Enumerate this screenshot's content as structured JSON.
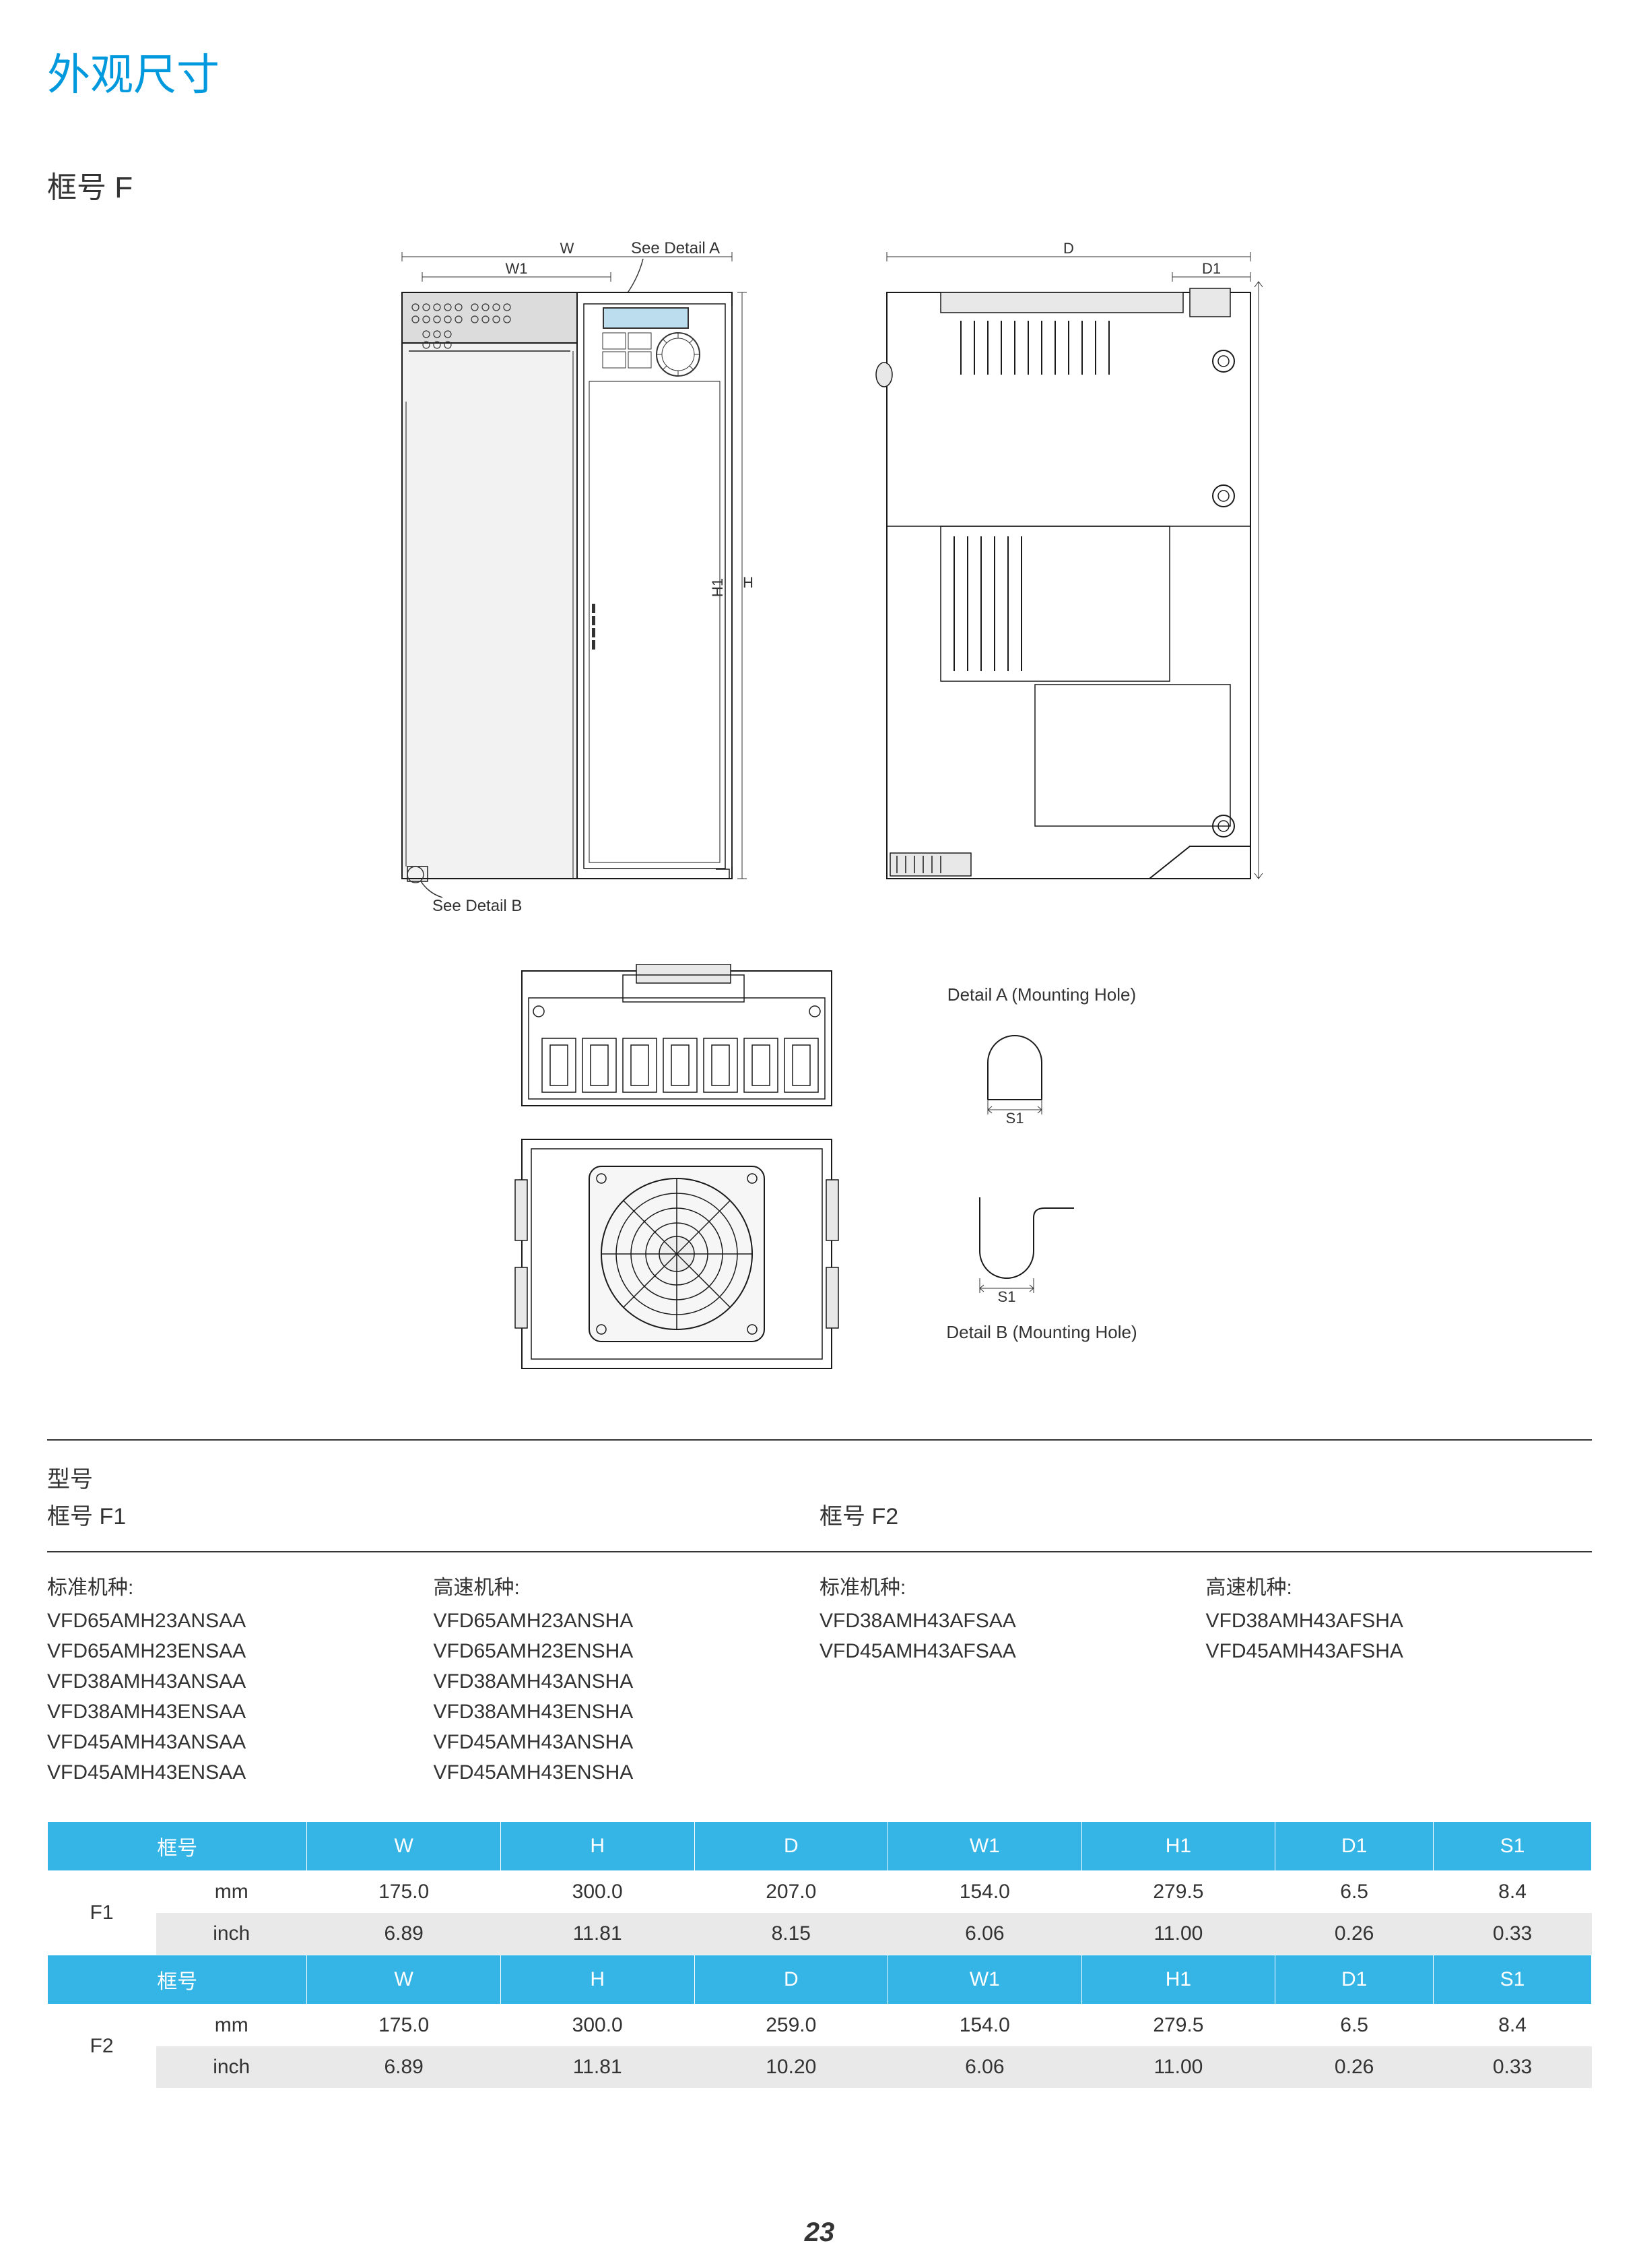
{
  "page": {
    "title": "外观尺寸",
    "subtitle": "框号 F",
    "page_number": "23"
  },
  "diagram": {
    "dims": {
      "W": "W",
      "W1": "W1",
      "H": "H",
      "H1": "H1",
      "D": "D",
      "D1": "D1",
      "S1": "S1"
    },
    "callouts": {
      "detail_a": "See Detail A",
      "detail_b": "See Detail B",
      "detail_a_title": "Detail A (Mounting Hole)",
      "detail_b_title": "Detail B (Mounting Hole)"
    },
    "colors": {
      "outline": "#1a1a1a",
      "fill_light": "#ffffff",
      "fill_top": "#d8d8d8",
      "fill_body": "#f0f0f0",
      "fan_fill": "#eeeeee"
    }
  },
  "models": {
    "section_label": "型号",
    "f1_label": "框号 F1",
    "f2_label": "框号 F2",
    "std_label": "标准机种:",
    "hs_label": "高速机种:",
    "f1_std": [
      "VFD65AMH23ANSAA",
      "VFD65AMH23ENSAA",
      "VFD38AMH43ANSAA",
      "VFD38AMH43ENSAA",
      "VFD45AMH43ANSAA",
      "VFD45AMH43ENSAA"
    ],
    "f1_hs": [
      "VFD65AMH23ANSHA",
      "VFD65AMH23ENSHA",
      "VFD38AMH43ANSHA",
      "VFD38AMH43ENSHA",
      "VFD45AMH43ANSHA",
      "VFD45AMH43ENSHA"
    ],
    "f2_std": [
      "VFD38AMH43AFSAA",
      "VFD45AMH43AFSAA"
    ],
    "f2_hs": [
      "VFD38AMH43AFSHA",
      "VFD45AMH43AFSHA"
    ]
  },
  "table": {
    "headers": [
      "框号",
      "W",
      "H",
      "D",
      "W1",
      "H1",
      "D1",
      "S1"
    ],
    "units": {
      "mm": "mm",
      "inch": "inch"
    },
    "frame_col_label": "框号",
    "f1": {
      "name": "F1",
      "mm": [
        "175.0",
        "300.0",
        "207.0",
        "154.0",
        "279.5",
        "6.5",
        "8.4"
      ],
      "inch": [
        "6.89",
        "11.81",
        "8.15",
        "6.06",
        "11.00",
        "0.26",
        "0.33"
      ]
    },
    "f2": {
      "name": "F2",
      "mm": [
        "175.0",
        "300.0",
        "259.0",
        "154.0",
        "279.5",
        "6.5",
        "8.4"
      ],
      "inch": [
        "6.89",
        "11.81",
        "10.20",
        "6.06",
        "11.00",
        "0.26",
        "0.33"
      ]
    },
    "style": {
      "header_bg": "#35b5e6",
      "header_fg": "#ffffff",
      "row_alt_bg": "#e9e9e9",
      "row_bg": "#ffffff",
      "text": "#333333"
    }
  }
}
